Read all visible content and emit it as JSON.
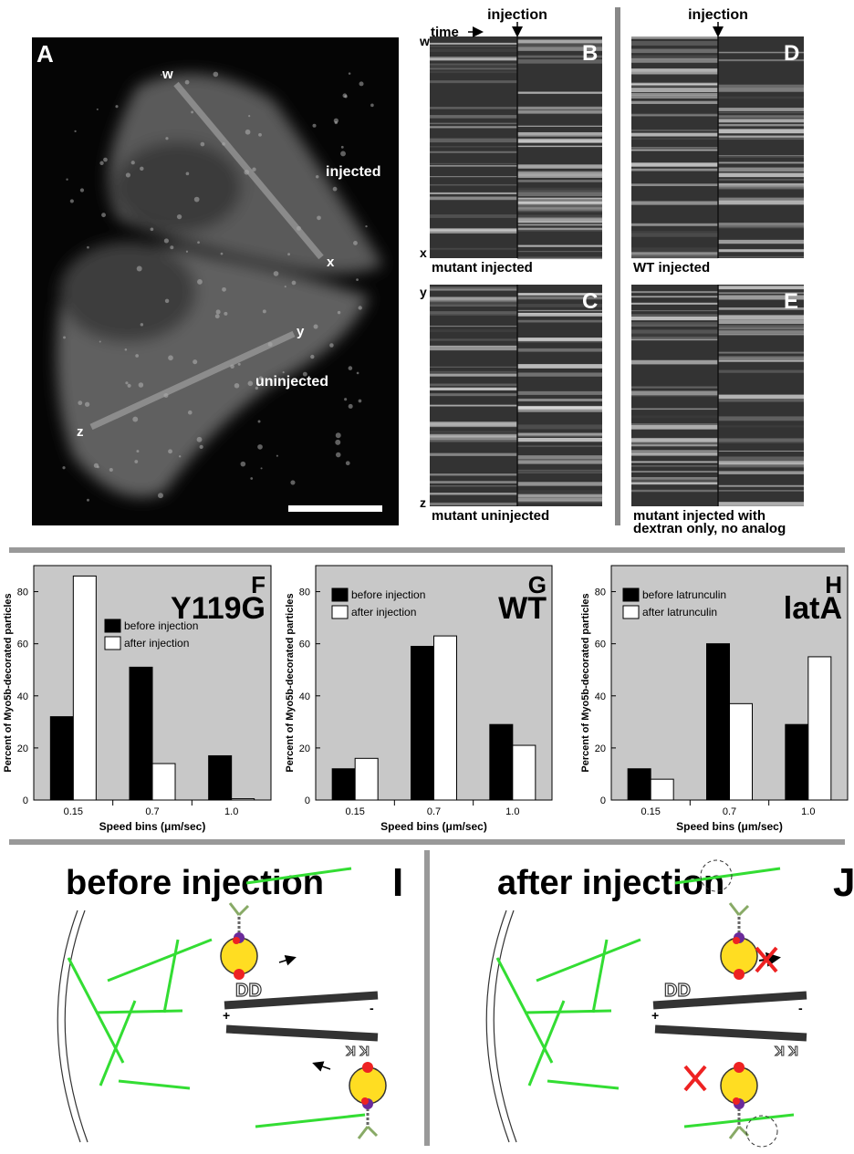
{
  "panel_a": {
    "letter": "A",
    "labels": [
      "w",
      "x",
      "y",
      "z"
    ],
    "injected": "injected",
    "uninjected": "uninjected"
  },
  "kymographs": {
    "time_label": "time",
    "injection_labels": [
      "injection",
      "injection"
    ],
    "edge_labels": [
      "w",
      "x",
      "y",
      "z"
    ],
    "panels": [
      {
        "letter": "B",
        "caption": [
          "mutant injected"
        ]
      },
      {
        "letter": "C",
        "caption": [
          "mutant uninjected"
        ]
      },
      {
        "letter": "D",
        "caption": [
          "WT injected"
        ]
      },
      {
        "letter": "E",
        "caption": [
          "mutant injected with",
          "dextran only, no analog"
        ]
      }
    ]
  },
  "chart_data": [
    {
      "type": "bar",
      "panel": "F",
      "title": "Y119G",
      "categories": [
        "0.15",
        "0.7",
        "1.0"
      ],
      "series": [
        {
          "name": "before injection",
          "color": "#000000",
          "values": [
            32,
            51,
            17
          ]
        },
        {
          "name": "after injection",
          "color": "#ffffff",
          "values": [
            86,
            14,
            0.5
          ]
        }
      ],
      "ylim": [
        0,
        90
      ],
      "yticks": [
        0,
        20,
        40,
        60,
        80
      ],
      "y_label": "Percent of Myo5b-decorated particles",
      "x_label": "Speed bins (μm/sec)"
    },
    {
      "type": "bar",
      "panel": "G",
      "title": "WT",
      "categories": [
        "0.15",
        "0.7",
        "1.0"
      ],
      "series": [
        {
          "name": "before injection",
          "color": "#000000",
          "values": [
            12,
            59,
            29
          ]
        },
        {
          "name": "after injection",
          "color": "#ffffff",
          "values": [
            16,
            63,
            21
          ]
        }
      ],
      "ylim": [
        0,
        90
      ],
      "yticks": [
        0,
        20,
        40,
        60,
        80
      ],
      "y_label": "Percent of Myo5b-decorated particles",
      "x_label": "Speed bins (μm/sec)"
    },
    {
      "type": "bar",
      "panel": "H",
      "title": "latA",
      "categories": [
        "0.15",
        "0.7",
        "1.0"
      ],
      "series": [
        {
          "name": "before latrunculin",
          "color": "#000000",
          "values": [
            12,
            60,
            29
          ]
        },
        {
          "name": "after latrunculin",
          "color": "#ffffff",
          "values": [
            8,
            37,
            55
          ]
        }
      ],
      "ylim": [
        0,
        90
      ],
      "yticks": [
        0,
        20,
        40,
        60,
        80
      ],
      "y_label": "Percent of Myo5b-decorated particles",
      "x_label": "Speed bins (μm/sec)"
    }
  ],
  "diagrams": [
    {
      "letter": "I",
      "title": "before injection",
      "plus": "+",
      "minus": "-",
      "dd": "DD",
      "kk": "K K"
    },
    {
      "letter": "J",
      "title": "after injection",
      "plus": "+",
      "minus": "-",
      "dd": "DD",
      "kk": "K K"
    }
  ]
}
